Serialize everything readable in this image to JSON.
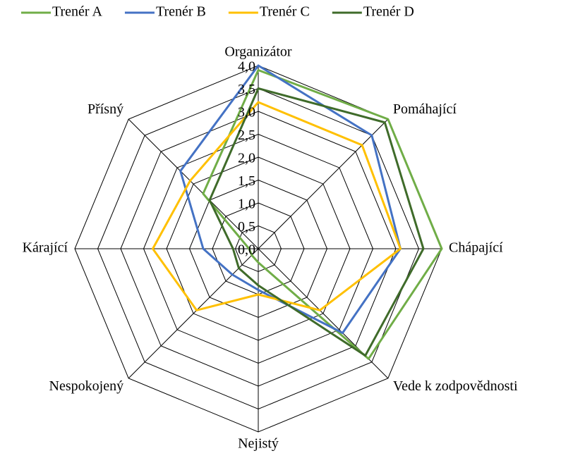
{
  "chart_data": {
    "type": "radar",
    "categories": [
      "Organizátor",
      "Pomáhající",
      "Chápající",
      "Vede k zodpovědnosti",
      "Nejistý",
      "Nespokojený",
      "Kárající",
      "Přísný"
    ],
    "series": [
      {
        "name": "Trenér A",
        "color": "#70ad47",
        "values": [
          3.9,
          4.0,
          4.0,
          3.4,
          0.3,
          0.2,
          0.2,
          1.7
        ]
      },
      {
        "name": "Trenér B",
        "color": "#4472c4",
        "values": [
          4.0,
          3.5,
          3.1,
          2.6,
          0.9,
          0.8,
          1.2,
          2.4
        ]
      },
      {
        "name": "Trenér C",
        "color": "#ffc000",
        "values": [
          3.2,
          3.2,
          3.1,
          1.9,
          1.0,
          1.9,
          2.3,
          2.1
        ]
      },
      {
        "name": "Trenér D",
        "color": "#3f6b2a",
        "values": [
          3.5,
          3.9,
          3.6,
          3.3,
          0.8,
          0.6,
          0.55,
          1.5
        ]
      }
    ],
    "ylim": [
      0,
      4
    ],
    "yticks": [
      {
        "value": 0,
        "label": "0,0"
      },
      {
        "value": 0.5,
        "label": "0,5"
      },
      {
        "value": 1,
        "label": "1,0"
      },
      {
        "value": 1.5,
        "label": "1,5"
      },
      {
        "value": 2,
        "label": "2,0"
      },
      {
        "value": 2.5,
        "label": "2,5"
      },
      {
        "value": 3,
        "label": "3,0"
      },
      {
        "value": 3.5,
        "label": "3,5"
      },
      {
        "value": 4,
        "label": "4,0"
      }
    ],
    "legend": "top",
    "grid": true
  }
}
